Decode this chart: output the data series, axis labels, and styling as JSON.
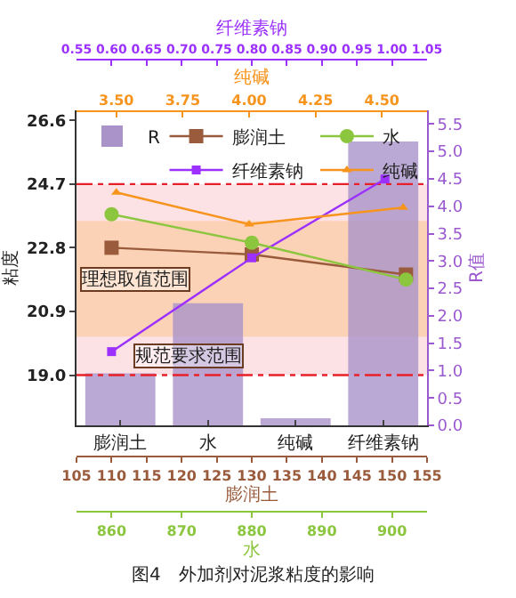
{
  "chart_data": [
    {
      "type": "bar",
      "ylabel": "粘度",
      "y2label": "R值",
      "categories": [
        "膨润土",
        "水",
        "纯碱",
        "纤维素钠"
      ],
      "ylim": [
        17.5,
        26.9
      ],
      "yticks": [
        {
          "value": 19,
          "label": "19.0"
        },
        {
          "value": 20.9,
          "label": "20.9"
        },
        {
          "value": 22.8,
          "label": "22.8"
        },
        {
          "value": 24.7,
          "label": "24.7"
        },
        {
          "value": 26.6,
          "label": "26.6"
        }
      ],
      "y2lim": [
        0,
        5.75
      ],
      "y2ticks": [
        {
          "value": 0,
          "label": "0.0"
        },
        0.5,
        {
          "value": 1,
          "label": "1.0"
        },
        1.5,
        {
          "value": 2,
          "label": "2.0"
        },
        2.5,
        {
          "value": 3,
          "label": "3.0"
        },
        3.5,
        {
          "value": 4,
          "label": "4.0"
        },
        4.5,
        {
          "value": 5,
          "label": "5.0"
        },
        5.5
      ],
      "series": [
        {
          "name": "R",
          "axis": "y2",
          "color": "#a993c9",
          "values": [
            0.95,
            2.23,
            0.13,
            5.18
          ]
        }
      ],
      "bands": [
        {
          "axis": "y",
          "from": 19.0,
          "to": 24.7,
          "label": "规范要求范围",
          "color": "#fcdde0"
        },
        {
          "axis": "y",
          "from": 20.15,
          "to": 23.6,
          "label": "理想取值范围",
          "color": "#fbcfae"
        }
      ],
      "ref_lines": [
        {
          "axis": "y",
          "value": 19.0,
          "color": "#e8202a",
          "line_style": "dashed"
        },
        {
          "axis": "y",
          "value": 24.7,
          "color": "#e8202a",
          "line_style": "dashed"
        }
      ],
      "legend": "top left",
      "annotations": [
        "图4　外加剂对泥浆粘度的影响"
      ]
    },
    {
      "type": "line",
      "tick_labels": "x",
      "ylim": [
        17.5,
        26.9
      ],
      "xlabel": "膨润土",
      "xlim": [
        105,
        155
      ],
      "xticks": [
        105,
        110,
        115,
        120,
        125,
        130,
        135,
        140,
        145,
        150,
        155
      ],
      "x2label": "纤维素钠",
      "x2lim": [
        0.55,
        1.05
      ],
      "x2ticks": [
        0.55,
        {
          "value": 0.6,
          "label": "0.60"
        },
        0.65,
        {
          "value": 0.7,
          "label": "0.70"
        },
        0.75,
        {
          "value": 0.8,
          "label": "0.80"
        },
        0.85,
        {
          "value": 0.9,
          "label": "0.90"
        },
        0.95,
        {
          "value": 1,
          "label": "1.00"
        },
        1.05
      ],
      "series": [
        {
          "name": "膨润土",
          "marker": "square",
          "color": "#9a5b3c",
          "x": [
            110,
            130,
            152
          ],
          "values": [
            22.8,
            22.6,
            22.0
          ]
        },
        {
          "name": "纤维素钠",
          "axis": "x2",
          "marker": "square",
          "color": "#9b30ff",
          "x": [
            0.6,
            0.8,
            0.99
          ],
          "values": [
            19.7,
            22.5,
            24.85
          ]
        }
      ],
      "legend": "top left"
    },
    {
      "type": "line",
      "tick_labels": "x",
      "ylim": [
        17.5,
        26.9
      ],
      "xlabel": "水",
      "xlim": [
        855,
        905
      ],
      "xticks": [
        860,
        870,
        880,
        890,
        900
      ],
      "x2label": "纯碱",
      "x2lim": [
        3.35,
        4.67
      ],
      "x2ticks": [
        {
          "value": 3.5,
          "label": "3.50"
        },
        3.75,
        {
          "value": 4,
          "label": "4.00"
        },
        4.25,
        {
          "value": 4.5,
          "label": "4.50"
        }
      ],
      "series": [
        {
          "name": "水",
          "marker": "circle",
          "color": "#8cc63f",
          "x": [
            860,
            880,
            902
          ],
          "values": [
            23.8,
            22.95,
            21.85
          ]
        },
        {
          "name": "纯碱",
          "axis": "x2",
          "marker": "triangle",
          "color": "#f7941d",
          "x": [
            3.5,
            4.0,
            4.58
          ],
          "values": [
            24.45,
            23.5,
            24.0
          ]
        }
      ],
      "legend": "top right"
    }
  ]
}
